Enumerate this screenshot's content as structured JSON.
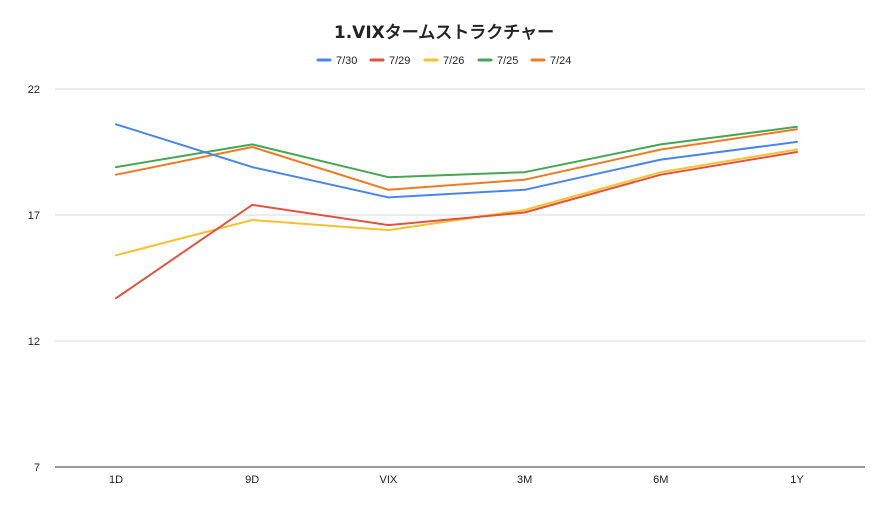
{
  "title": "1.VIXタームストラクチャー",
  "chart_data": {
    "type": "line",
    "title": "1.VIXタームストラクチャー",
    "categories": [
      "1D",
      "9D",
      "VIX",
      "3M",
      "6M",
      "1Y"
    ],
    "series": [
      {
        "name": "7/30",
        "color": "#4a86e8",
        "values": [
          20.6,
          18.9,
          17.7,
          18.0,
          19.2,
          19.9
        ]
      },
      {
        "name": "7/29",
        "color": "#e0533e",
        "values": [
          13.7,
          17.4,
          16.6,
          17.1,
          18.6,
          19.5
        ]
      },
      {
        "name": "7/26",
        "color": "#f6c031",
        "values": [
          15.4,
          16.8,
          16.4,
          17.2,
          18.7,
          19.6
        ]
      },
      {
        "name": "7/25",
        "color": "#47a652",
        "values": [
          18.9,
          19.8,
          18.5,
          18.7,
          19.8,
          20.5
        ]
      },
      {
        "name": "7/24",
        "color": "#ee7a24",
        "values": [
          18.6,
          19.7,
          18.0,
          18.4,
          19.6,
          20.4
        ]
      }
    ],
    "y_ticks": [
      "22",
      "17",
      "12",
      "7"
    ],
    "ylim": [
      7,
      22
    ],
    "grid": true,
    "legend": "top-center",
    "xlabel": "",
    "ylabel": ""
  }
}
